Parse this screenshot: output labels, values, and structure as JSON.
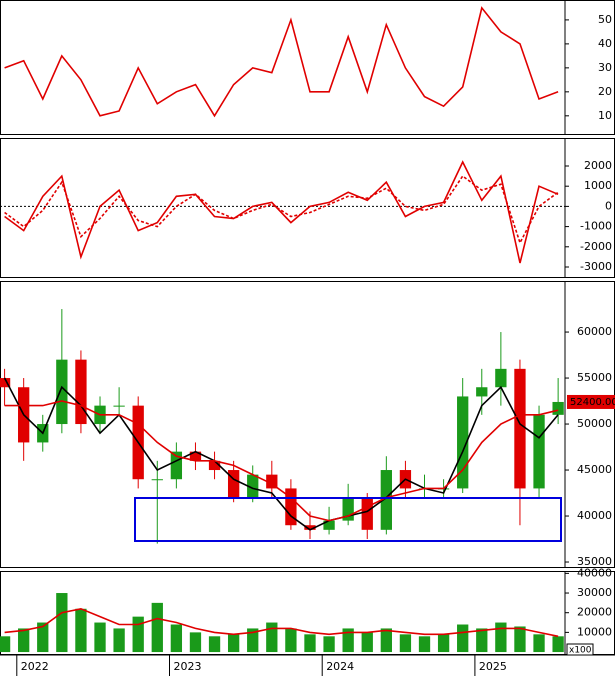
{
  "chart_data": [
    {
      "type": "line",
      "xlim": [
        2021.89,
        2025.59
      ],
      "ylim": [
        2,
        58.3
      ],
      "yticks": [
        10,
        20,
        30,
        40,
        50
      ],
      "x": [
        2021.92,
        2022.045,
        2022.17,
        2022.295,
        2022.42,
        2022.545,
        2022.67,
        2022.795,
        2022.92,
        2023.045,
        2023.17,
        2023.295,
        2023.42,
        2023.545,
        2023.67,
        2023.795,
        2023.92,
        2024.045,
        2024.17,
        2024.295,
        2024.42,
        2024.545,
        2024.67,
        2024.795,
        2024.92,
        2025.045,
        2025.17,
        2025.295,
        2025.42,
        2025.545
      ],
      "series": [
        {
          "color": "#e00000",
          "dashed": false,
          "values": [
            30,
            33,
            17,
            35,
            25,
            10,
            12,
            30,
            15,
            20,
            23,
            10,
            23,
            30,
            28,
            50,
            20,
            20,
            43,
            20,
            48,
            30,
            18,
            14,
            22,
            55,
            45,
            40,
            17,
            20
          ]
        }
      ]
    },
    {
      "type": "line",
      "xlim": [
        2021.89,
        2025.59
      ],
      "ylim": [
        -3545,
        3386
      ],
      "yticks": [
        -3000,
        -2000,
        -1000,
        0,
        1000,
        2000
      ],
      "zero_line": true,
      "x": [
        2021.92,
        2022.045,
        2022.17,
        2022.295,
        2022.42,
        2022.545,
        2022.67,
        2022.795,
        2022.92,
        2023.045,
        2023.17,
        2023.295,
        2023.42,
        2023.545,
        2023.67,
        2023.795,
        2023.92,
        2024.045,
        2024.17,
        2024.295,
        2024.42,
        2024.545,
        2024.67,
        2024.795,
        2024.92,
        2025.045,
        2025.17,
        2025.295,
        2025.42,
        2025.545
      ],
      "series": [
        {
          "color": "#e00000",
          "dashed": false,
          "values": [
            -500,
            -1200,
            500,
            1500,
            -2500,
            0,
            800,
            -1200,
            -800,
            500,
            600,
            -500,
            -600,
            0,
            200,
            -800,
            0,
            200,
            700,
            300,
            1200,
            -500,
            0,
            200,
            2200,
            300,
            1500,
            -2800,
            1000,
            600
          ]
        },
        {
          "color": "#e00000",
          "dashed": true,
          "values": [
            -300,
            -1000,
            -200,
            1200,
            -1500,
            -600,
            500,
            -700,
            -1000,
            0,
            600,
            -200,
            -600,
            -200,
            100,
            -500,
            -300,
            100,
            500,
            400,
            900,
            0,
            -200,
            100,
            1500,
            800,
            1100,
            -1800,
            0,
            700
          ]
        }
      ]
    },
    {
      "type": "candlestick",
      "xlim": [
        2021.89,
        2025.59
      ],
      "ylim": [
        34350,
        65550
      ],
      "yticks": [
        35000,
        40000,
        45000,
        50000,
        55000,
        60000
      ],
      "up_color": "#1a9a1a",
      "down_color": "#e00000",
      "x": [
        2021.92,
        2022.045,
        2022.17,
        2022.295,
        2022.42,
        2022.545,
        2022.67,
        2022.795,
        2022.92,
        2023.045,
        2023.17,
        2023.295,
        2023.42,
        2023.545,
        2023.67,
        2023.795,
        2023.92,
        2024.045,
        2024.17,
        2024.295,
        2024.42,
        2024.545,
        2024.67,
        2024.795,
        2024.92,
        2025.045,
        2025.17,
        2025.295,
        2025.42,
        2025.545
      ],
      "open": [
        55000,
        54000,
        48000,
        50000,
        57000,
        50000,
        52000,
        52000,
        44000,
        44000,
        47000,
        46000,
        45000,
        42000,
        44500,
        43000,
        39000,
        38500,
        39500,
        42000,
        38500,
        45000,
        43000,
        43000,
        43000,
        53000,
        54000,
        56000,
        43000,
        51000
      ],
      "high": [
        56000,
        55000,
        51000,
        62500,
        58000,
        53000,
        54000,
        53000,
        46000,
        48000,
        48000,
        47000,
        46000,
        45500,
        46000,
        44000,
        40500,
        41000,
        43500,
        42500,
        46500,
        46000,
        44500,
        44000,
        55000,
        56000,
        60000,
        57000,
        52000,
        55000
      ],
      "low": [
        52000,
        46000,
        47000,
        49000,
        49000,
        49000,
        51000,
        43000,
        37000,
        43000,
        45000,
        44000,
        41500,
        41500,
        42000,
        38500,
        37500,
        38000,
        39000,
        37500,
        38000,
        42000,
        42000,
        42000,
        42500,
        51000,
        52000,
        39000,
        42000,
        50000
      ],
      "close": [
        54000,
        48000,
        50000,
        57000,
        50000,
        52000,
        52000,
        44000,
        44000,
        47000,
        46000,
        45000,
        42000,
        44500,
        43000,
        39000,
        38500,
        39500,
        42000,
        38500,
        45000,
        43000,
        43000,
        43000,
        53000,
        54000,
        56000,
        43000,
        51000,
        52400
      ],
      "series": [
        {
          "color": "#000000",
          "values": [
            55000,
            51000,
            49000,
            54000,
            52000,
            49000,
            51000,
            48000,
            45000,
            46000,
            47000,
            46000,
            44000,
            43000,
            42500,
            40000,
            38500,
            39500,
            40000,
            40500,
            42000,
            44000,
            43000,
            42500,
            47000,
            52000,
            54000,
            50000,
            48500,
            51000
          ]
        },
        {
          "color": "#e00000",
          "values": [
            52000,
            52000,
            52000,
            52500,
            52000,
            51000,
            51000,
            50000,
            48000,
            46500,
            46000,
            46000,
            45500,
            44500,
            43500,
            42000,
            40000,
            39500,
            40000,
            41000,
            42000,
            42500,
            43000,
            43000,
            45000,
            48000,
            50000,
            51000,
            51000,
            51500
          ]
        }
      ],
      "last_price": {
        "value": 52400,
        "label": "52400.00"
      }
    },
    {
      "type": "bar",
      "xlim": [
        2021.89,
        2025.59
      ],
      "ylim": [
        -1500,
        41200
      ],
      "yticks": [
        10000,
        20000,
        30000,
        40000
      ],
      "xticks": [
        2022,
        2023,
        2024,
        2025
      ],
      "unit_label": "x100",
      "color": "#1a9a1a",
      "x": [
        2021.92,
        2022.045,
        2022.17,
        2022.295,
        2022.42,
        2022.545,
        2022.67,
        2022.795,
        2022.92,
        2023.045,
        2023.17,
        2023.295,
        2023.42,
        2023.545,
        2023.67,
        2023.795,
        2023.92,
        2024.045,
        2024.17,
        2024.295,
        2024.42,
        2024.545,
        2024.67,
        2024.795,
        2024.92,
        2025.045,
        2025.17,
        2025.295,
        2025.42,
        2025.545
      ],
      "values": [
        8000,
        12000,
        15000,
        30000,
        22000,
        15000,
        12000,
        18000,
        25000,
        14000,
        10000,
        8000,
        9000,
        12000,
        15000,
        12000,
        9000,
        8000,
        12000,
        10000,
        12000,
        9000,
        8000,
        9000,
        14000,
        12000,
        15000,
        13000,
        9000,
        8000
      ],
      "series": [
        {
          "color": "#e00000",
          "values": [
            10000,
            11000,
            13000,
            20000,
            22000,
            18000,
            14000,
            14000,
            17000,
            15000,
            12000,
            10000,
            9000,
            10000,
            12000,
            12000,
            10000,
            9000,
            10000,
            10000,
            11000,
            10000,
            9000,
            9000,
            10000,
            11000,
            12000,
            12000,
            10000,
            8000
          ]
        }
      ]
    }
  ]
}
